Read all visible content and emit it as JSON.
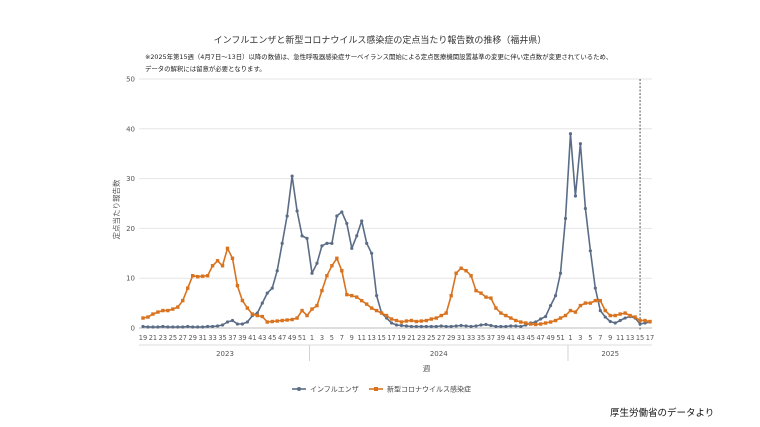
{
  "chart_data": {
    "type": "line",
    "title": "インフルエンザと新型コロナウイルス感染症の定点当たり報告数の推移（福井県）",
    "note_lines": [
      "※2025年第15週（4月7日〜13日）以降の数値は、急性呼吸器感染症サーベイランス開始による定点医療機関設置基準の変更に伴い定点数が変更されているため、",
      "データの解釈には留意が必要となります。"
    ],
    "ylabel": "定点当たり報告数",
    "xlabel": "週",
    "ylim": [
      0,
      50
    ],
    "yticks": [
      0,
      10,
      20,
      30,
      40,
      50
    ],
    "gridlines": true,
    "legend_position": "bottom-center",
    "x": [
      "19",
      "20",
      "21",
      "22",
      "23",
      "24",
      "25",
      "26",
      "27",
      "28",
      "29",
      "30",
      "31",
      "32",
      "33",
      "34",
      "35",
      "36",
      "37",
      "38",
      "39",
      "40",
      "41",
      "42",
      "43",
      "44",
      "45",
      "46",
      "47",
      "48",
      "49",
      "50",
      "51",
      "52",
      "1",
      "2",
      "3",
      "4",
      "5",
      "6",
      "7",
      "8",
      "9",
      "10",
      "11",
      "12",
      "13",
      "14",
      "15",
      "16",
      "17",
      "18",
      "19",
      "20",
      "21",
      "22",
      "23",
      "24",
      "25",
      "26",
      "27",
      "28",
      "29",
      "30",
      "31",
      "32",
      "33",
      "34",
      "35",
      "36",
      "37",
      "38",
      "39",
      "40",
      "41",
      "42",
      "43",
      "44",
      "45",
      "46",
      "47",
      "48",
      "49",
      "50",
      "51",
      "52",
      "1",
      "2",
      "3",
      "4",
      "5",
      "6",
      "7",
      "8",
      "9",
      "10",
      "11",
      "12",
      "13",
      "14",
      "15",
      "16",
      "17"
    ],
    "x_tick_labels": [
      "19",
      "21",
      "23",
      "25",
      "27",
      "29",
      "31",
      "33",
      "35",
      "37",
      "39",
      "41",
      "43",
      "45",
      "47",
      "49",
      "51",
      "1",
      "3",
      "5",
      "7",
      "9",
      "11",
      "13",
      "15",
      "17",
      "19",
      "21",
      "23",
      "25",
      "27",
      "29",
      "31",
      "33",
      "35",
      "37",
      "39",
      "41",
      "43",
      "45",
      "47",
      "49",
      "51",
      "1",
      "3",
      "5",
      "7",
      "9",
      "11",
      "13",
      "15",
      "17"
    ],
    "year_groups": [
      {
        "label": "2023",
        "start_index": 0,
        "end_index": 33
      },
      {
        "label": "2024",
        "start_index": 34,
        "end_index": 85
      },
      {
        "label": "2025",
        "start_index": 86,
        "end_index": 102
      }
    ],
    "marker_line": {
      "at_index": 100,
      "style": "dashed"
    },
    "series": [
      {
        "name": "インフルエンザ",
        "color": "#5b6d86",
        "marker": "circle",
        "values": [
          0.3,
          0.2,
          0.2,
          0.2,
          0.3,
          0.2,
          0.2,
          0.2,
          0.2,
          0.3,
          0.2,
          0.2,
          0.2,
          0.3,
          0.3,
          0.4,
          0.6,
          1.2,
          1.5,
          0.8,
          0.8,
          1.2,
          2.5,
          3.0,
          5.0,
          7.0,
          8.0,
          11.5,
          17.0,
          22.5,
          30.5,
          23.5,
          18.5,
          18.0,
          11.0,
          13.0,
          16.5,
          17.0,
          17.0,
          22.5,
          23.3,
          21.0,
          16.0,
          18.5,
          21.5,
          17.0,
          15.0,
          6.5,
          3.0,
          2.0,
          1.0,
          0.6,
          0.5,
          0.4,
          0.3,
          0.3,
          0.3,
          0.3,
          0.3,
          0.3,
          0.4,
          0.3,
          0.3,
          0.4,
          0.5,
          0.4,
          0.3,
          0.4,
          0.6,
          0.7,
          0.5,
          0.3,
          0.3,
          0.3,
          0.4,
          0.4,
          0.3,
          0.6,
          1.0,
          1.2,
          1.8,
          2.3,
          4.5,
          6.5,
          11.0,
          22.0,
          39.0,
          26.5,
          37.0,
          24.0,
          15.5,
          8.0,
          3.5,
          2.2,
          1.3,
          1.0,
          1.5,
          2.0,
          2.3,
          2.0,
          0.8,
          1.0,
          1.2
        ]
      },
      {
        "name": "新型コロナウイルス感染症",
        "color": "#d9731f",
        "marker": "square",
        "values": [
          2.0,
          2.2,
          2.8,
          3.2,
          3.5,
          3.5,
          3.8,
          4.2,
          5.5,
          8.0,
          10.5,
          10.3,
          10.4,
          10.5,
          12.5,
          13.5,
          12.5,
          16.0,
          14.0,
          8.5,
          5.5,
          4.0,
          2.8,
          2.5,
          2.3,
          1.2,
          1.3,
          1.4,
          1.5,
          1.6,
          1.7,
          2.0,
          3.5,
          2.5,
          3.8,
          4.5,
          7.5,
          10.5,
          12.5,
          14.0,
          11.5,
          6.7,
          6.5,
          6.2,
          5.5,
          4.8,
          4.0,
          3.5,
          3.0,
          2.5,
          1.8,
          1.5,
          1.2,
          1.4,
          1.5,
          1.3,
          1.4,
          1.5,
          1.8,
          2.0,
          2.5,
          3.0,
          6.5,
          11.0,
          12.0,
          11.5,
          10.5,
          7.5,
          7.0,
          6.2,
          6.0,
          4.0,
          3.0,
          2.5,
          2.0,
          1.5,
          1.2,
          1.0,
          0.8,
          0.7,
          0.8,
          1.0,
          1.2,
          1.5,
          2.0,
          2.5,
          3.5,
          3.2,
          4.5,
          5.0,
          5.0,
          5.5,
          5.5,
          3.5,
          2.5,
          2.5,
          2.8,
          3.0,
          2.5,
          2.2,
          1.5,
          1.5,
          1.3
        ]
      }
    ]
  },
  "source_text": "厚生労働省のデータより"
}
